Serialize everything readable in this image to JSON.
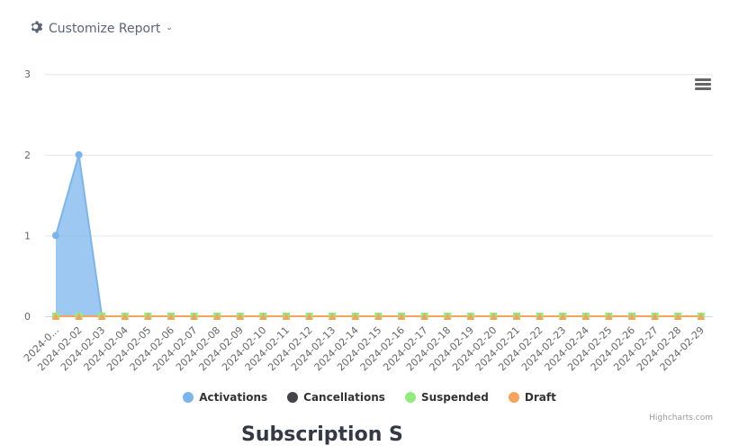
{
  "header": {
    "customize_label": "Customize Report",
    "customize_icon": "gear-icon",
    "dropdown_icon": "chevron-down-icon"
  },
  "chart_menu": {
    "icon": "hamburger-menu-icon"
  },
  "credits": "Highcharts.com",
  "section_heading": "Subscription S",
  "colors": {
    "activations": "#7cb5ec",
    "cancellations": "#434348",
    "suspended": "#90ed7d",
    "draft": "#f7a35c",
    "grid": "#e6e6e6"
  },
  "legend": [
    {
      "label": "Activations",
      "color": "#7cb5ec"
    },
    {
      "label": "Cancellations",
      "color": "#434348"
    },
    {
      "label": "Suspended",
      "color": "#90ed7d"
    },
    {
      "label": "Draft",
      "color": "#f7a35c"
    }
  ],
  "chart_data": {
    "type": "area",
    "title": "",
    "xlabel": "",
    "ylabel": "",
    "ylim": [
      0,
      3
    ],
    "yticks": [
      0,
      1,
      2,
      3
    ],
    "grid": true,
    "legend_position": "bottom",
    "categories": [
      "2024-0...",
      "2024-02-02",
      "2024-02-03",
      "2024-02-04",
      "2024-02-05",
      "2024-02-06",
      "2024-02-07",
      "2024-02-08",
      "2024-02-09",
      "2024-02-10",
      "2024-02-11",
      "2024-02-12",
      "2024-02-13",
      "2024-02-14",
      "2024-02-15",
      "2024-02-16",
      "2024-02-17",
      "2024-02-18",
      "2024-02-19",
      "2024-02-20",
      "2024-02-21",
      "2024-02-22",
      "2024-02-23",
      "2024-02-24",
      "2024-02-25",
      "2024-02-26",
      "2024-02-27",
      "2024-02-28",
      "2024-02-29"
    ],
    "series": [
      {
        "name": "Activations",
        "values": [
          1,
          2,
          0,
          0,
          0,
          0,
          0,
          0,
          0,
          0,
          0,
          0,
          0,
          0,
          0,
          0,
          0,
          0,
          0,
          0,
          0,
          0,
          0,
          0,
          0,
          0,
          0,
          0,
          0
        ]
      },
      {
        "name": "Cancellations",
        "values": [
          0,
          0,
          0,
          0,
          0,
          0,
          0,
          0,
          0,
          0,
          0,
          0,
          0,
          0,
          0,
          0,
          0,
          0,
          0,
          0,
          0,
          0,
          0,
          0,
          0,
          0,
          0,
          0,
          0
        ]
      },
      {
        "name": "Suspended",
        "values": [
          0,
          0,
          0,
          0,
          0,
          0,
          0,
          0,
          0,
          0,
          0,
          0,
          0,
          0,
          0,
          0,
          0,
          0,
          0,
          0,
          0,
          0,
          0,
          0,
          0,
          0,
          0,
          0,
          0
        ]
      },
      {
        "name": "Draft",
        "values": [
          0,
          0,
          0,
          0,
          0,
          0,
          0,
          0,
          0,
          0,
          0,
          0,
          0,
          0,
          0,
          0,
          0,
          0,
          0,
          0,
          0,
          0,
          0,
          0,
          0,
          0,
          0,
          0,
          0
        ]
      }
    ]
  }
}
